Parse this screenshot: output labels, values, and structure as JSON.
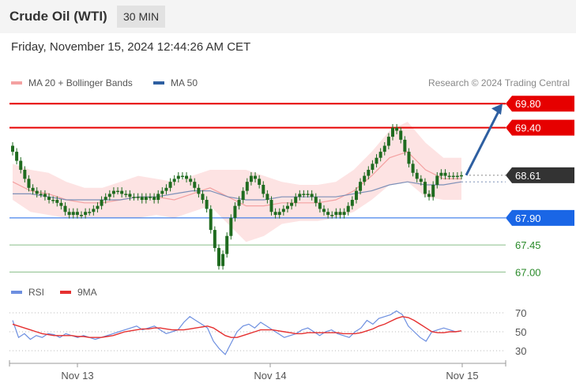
{
  "header": {
    "title": "Crude Oil (WTI)",
    "timeframe": "30 MIN",
    "datetime": "Friday, November 15, 2024 12:44:26 AM CET"
  },
  "legend": {
    "items": [
      {
        "name": "MA 20 + Bollinger Bands",
        "color": "#f4a1a1"
      },
      {
        "name": "MA 50",
        "color": "#2e5fa1"
      }
    ],
    "credit": "Research © 2024 Trading Central"
  },
  "rsi_legend": {
    "items": [
      {
        "name": "RSI",
        "color": "#6d8fe0"
      },
      {
        "name": "9MA",
        "color": "#e53030"
      }
    ]
  },
  "chart_data": [
    {
      "type": "candlestick",
      "title": "Crude Oil (WTI)",
      "timeframe": "30 MIN",
      "x_labels": [
        "Nov 13",
        "Nov 14",
        "Nov 15"
      ],
      "ylim": [
        66.9,
        70.0
      ],
      "current_price": "68.61",
      "levels": [
        {
          "label": "69.80",
          "value": 69.8,
          "kind": "resistance",
          "color": "#e60000"
        },
        {
          "label": "69.40",
          "value": 69.4,
          "kind": "resistance",
          "color": "#e60000"
        },
        {
          "label": "68.61",
          "value": 68.61,
          "kind": "last",
          "color": "#333333"
        },
        {
          "label": "67.90",
          "value": 67.9,
          "kind": "pivot",
          "color": "#1a66e6"
        },
        {
          "label": "67.45",
          "value": 67.45,
          "kind": "support",
          "color": "#2a8a2a"
        },
        {
          "label": "67.00",
          "value": 67.0,
          "kind": "support",
          "color": "#2a8a2a"
        }
      ],
      "series": [
        {
          "name": "Close",
          "kind": "candles",
          "values": [
            69.0,
            68.85,
            68.7,
            68.55,
            68.4,
            68.35,
            68.3,
            68.3,
            68.25,
            68.2,
            68.2,
            68.15,
            68.1,
            68.0,
            67.95,
            68.0,
            67.95,
            67.95,
            68.0,
            68.0,
            68.05,
            68.1,
            68.2,
            68.25,
            68.3,
            68.35,
            68.35,
            68.3,
            68.3,
            68.25,
            68.25,
            68.25,
            68.2,
            68.25,
            68.25,
            68.2,
            68.3,
            68.35,
            68.4,
            68.5,
            68.55,
            68.6,
            68.6,
            68.55,
            68.5,
            68.4,
            68.3,
            68.2,
            68.05,
            67.7,
            67.4,
            67.1,
            67.3,
            67.6,
            67.9,
            68.1,
            68.2,
            68.35,
            68.5,
            68.6,
            68.55,
            68.45,
            68.3,
            68.2,
            68.0,
            67.95,
            68.0,
            68.05,
            68.1,
            68.15,
            68.25,
            68.3,
            68.3,
            68.3,
            68.25,
            68.15,
            68.05,
            68.0,
            67.95,
            67.95,
            68.0,
            67.95,
            68.0,
            68.1,
            68.2,
            68.35,
            68.5,
            68.6,
            68.7,
            68.8,
            68.9,
            69.0,
            69.1,
            69.25,
            69.4,
            69.35,
            69.2,
            69.0,
            68.8,
            68.65,
            68.55,
            68.5,
            68.3,
            68.25,
            68.45,
            68.6,
            68.65,
            68.6,
            68.6,
            68.6,
            68.6,
            68.61
          ]
        },
        {
          "name": "MA 20",
          "kind": "line",
          "values": [
            68.5,
            68.35,
            68.3,
            68.2,
            68.15,
            68.15,
            68.2,
            68.25,
            68.25,
            68.2,
            68.3,
            68.4,
            68.25,
            68.1,
            68.1,
            68.15,
            68.15,
            68.15,
            68.2,
            68.35,
            68.6,
            68.9,
            69.0,
            68.7,
            68.55,
            68.55
          ]
        },
        {
          "name": "MA 50",
          "kind": "line",
          "values": [
            68.3,
            68.3,
            68.25,
            68.2,
            68.2,
            68.2,
            68.2,
            68.25,
            68.25,
            68.3,
            68.35,
            68.35,
            68.25,
            68.2,
            68.2,
            68.25,
            68.25,
            68.25,
            68.25,
            68.3,
            68.35,
            68.45,
            68.5,
            68.45,
            68.45,
            68.5
          ]
        }
      ],
      "projection": {
        "from": 68.61,
        "to": 69.8
      }
    },
    {
      "type": "line",
      "title": "RSI",
      "ylim": [
        25,
        75
      ],
      "y_ticks": [
        "70",
        "50",
        "30"
      ],
      "series": [
        {
          "name": "RSI",
          "values": [
            62,
            44,
            48,
            42,
            46,
            44,
            48,
            47,
            44,
            48,
            46,
            44,
            46,
            44,
            42,
            44,
            46,
            48,
            50,
            52,
            54,
            56,
            52,
            54,
            56,
            52,
            48,
            50,
            52,
            60,
            66,
            62,
            58,
            54,
            40,
            32,
            26,
            38,
            50,
            56,
            58,
            54,
            60,
            56,
            52,
            48,
            44,
            46,
            48,
            52,
            54,
            50,
            46,
            50,
            52,
            48,
            46,
            44,
            50,
            54,
            62,
            58,
            64,
            66,
            68,
            72,
            68,
            56,
            50,
            44,
            40,
            50,
            52,
            54,
            52,
            50,
            51
          ]
        },
        {
          "name": "9MA",
          "values": [
            58,
            56,
            54,
            52,
            50,
            48,
            47,
            46,
            46,
            46,
            46,
            45,
            45,
            44,
            44,
            44,
            45,
            46,
            48,
            50,
            51,
            52,
            53,
            53,
            54,
            54,
            53,
            52,
            52,
            52,
            53,
            54,
            55,
            56,
            54,
            50,
            46,
            44,
            44,
            46,
            48,
            50,
            52,
            52,
            52,
            51,
            50,
            49,
            48,
            48,
            49,
            49,
            49,
            49,
            49,
            49,
            48,
            48,
            48,
            49,
            51,
            53,
            56,
            58,
            61,
            64,
            66,
            65,
            62,
            58,
            54,
            50,
            49,
            49,
            50,
            50,
            51
          ]
        }
      ]
    }
  ]
}
